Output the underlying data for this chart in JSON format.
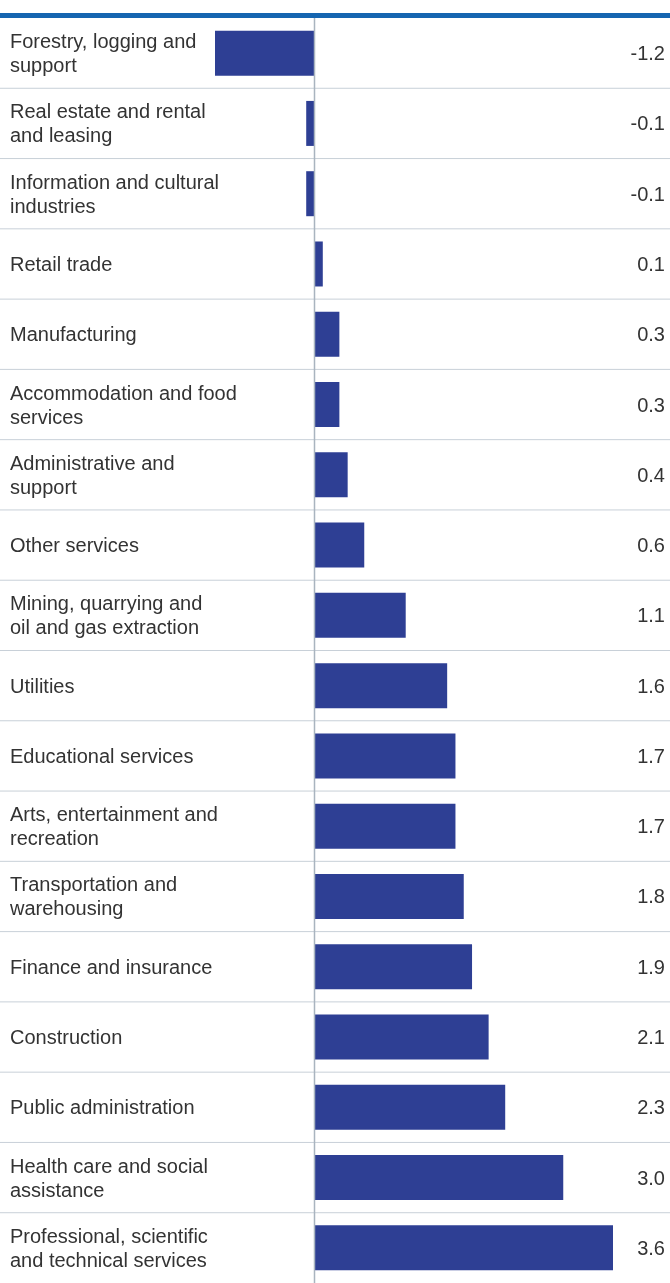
{
  "chart_data": {
    "type": "bar",
    "orientation": "horizontal",
    "color": "#2e3f94",
    "categories": [
      "Forestry, logging and support",
      "Real estate and rental and leasing",
      "Information and cultural industries",
      "Retail trade",
      "Manufacturing",
      "Accommodation and food services",
      "Administrative and support",
      "Other services",
      "Mining, quarrying and oil and gas extraction",
      "Utilities",
      "Educational services",
      "Arts, entertainment and recreation",
      "Transportation and warehousing",
      "Finance and insurance",
      "Construction",
      "Public administration",
      "Health care and social assistance",
      "Professional, scientific and technical services"
    ],
    "values": [
      -1.2,
      -0.1,
      -0.1,
      0.1,
      0.3,
      0.3,
      0.4,
      0.6,
      1.1,
      1.6,
      1.7,
      1.7,
      1.8,
      1.9,
      2.1,
      2.3,
      3.0,
      3.6
    ],
    "value_labels": [
      "-1.2",
      "-0.1",
      "-0.1",
      "0.1",
      "0.3",
      "0.3",
      "0.4",
      "0.6",
      "1.1",
      "1.6",
      "1.7",
      "1.7",
      "1.8",
      "1.9",
      "2.1",
      "2.3",
      "3.0",
      "3.6"
    ],
    "ref_lines": [
      {
        "axis": "x",
        "value": 0,
        "color": "#a9b4bf"
      }
    ]
  }
}
